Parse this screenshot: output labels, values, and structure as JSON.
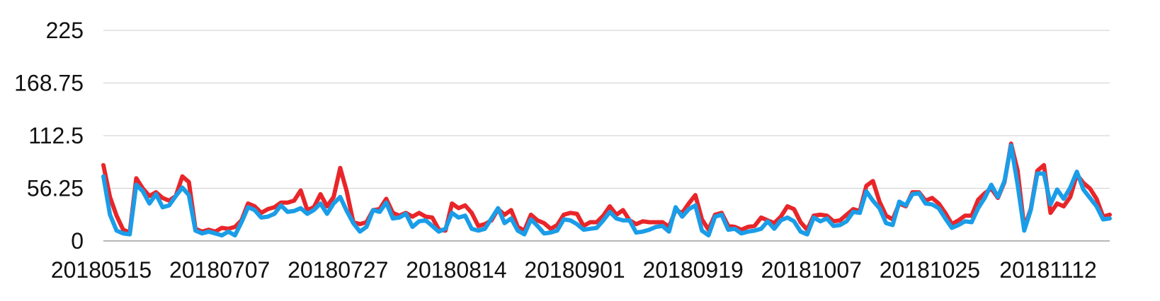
{
  "chart_data": {
    "type": "line",
    "ylim": [
      0,
      225
    ],
    "yticks": [
      "0",
      "56.25",
      "112.5",
      "168.75",
      "225"
    ],
    "xtick_labels": [
      "20180515",
      "20180707",
      "20180727",
      "20180814",
      "20180901",
      "20180919",
      "20181007",
      "20181025",
      "20181112"
    ],
    "grid": true,
    "series": [
      {
        "color": "#e8262a",
        "values": [
          81,
          47,
          27,
          12,
          9,
          67,
          56,
          48,
          52,
          46,
          43,
          48,
          69,
          63,
          13,
          10,
          12,
          10,
          14,
          13,
          15,
          22,
          40,
          37,
          30,
          34,
          36,
          41,
          41,
          43,
          54,
          33,
          36,
          50,
          37,
          47,
          78,
          53,
          20,
          18,
          20,
          33,
          34,
          45,
          30,
          27,
          30,
          26,
          30,
          26,
          25,
          12,
          11,
          40,
          35,
          38,
          30,
          16,
          18,
          22,
          34,
          28,
          33,
          15,
          11,
          28,
          22,
          19,
          13,
          17,
          28,
          30,
          29,
          16,
          20,
          20,
          27,
          37,
          28,
          33,
          22,
          18,
          21,
          20,
          20,
          20,
          15,
          33,
          30,
          40,
          49,
          23,
          12,
          28,
          30,
          16,
          15,
          12,
          15,
          16,
          25,
          22,
          19,
          26,
          37,
          34,
          20,
          12,
          27,
          28,
          27,
          21,
          22,
          28,
          34,
          32,
          59,
          64,
          42,
          27,
          23,
          40,
          37,
          52,
          52,
          43,
          46,
          40,
          30,
          18,
          22,
          27,
          27,
          44,
          51,
          56,
          46,
          63,
          104,
          75,
          14,
          34,
          75,
          81,
          30,
          40,
          37,
          47,
          71,
          62,
          56,
          45,
          26,
          28
        ]
      },
      {
        "color": "#1a9de8",
        "values": [
          69,
          28,
          11,
          8,
          7,
          60,
          53,
          40,
          50,
          36,
          38,
          48,
          57,
          49,
          11,
          8,
          10,
          8,
          6,
          10,
          6,
          20,
          36,
          33,
          25,
          26,
          29,
          38,
          31,
          32,
          35,
          29,
          33,
          40,
          29,
          40,
          47,
          32,
          19,
          10,
          15,
          33,
          31,
          41,
          24,
          25,
          29,
          15,
          21,
          22,
          16,
          10,
          13,
          30,
          25,
          27,
          13,
          11,
          13,
          24,
          35,
          19,
          24,
          11,
          7,
          23,
          16,
          8,
          9,
          11,
          23,
          22,
          18,
          12,
          13,
          14,
          22,
          31,
          24,
          22,
          22,
          9,
          10,
          12,
          15,
          16,
          10,
          36,
          26,
          34,
          38,
          11,
          6,
          26,
          28,
          12,
          13,
          8,
          10,
          11,
          13,
          21,
          13,
          22,
          25,
          21,
          10,
          7,
          25,
          21,
          24,
          16,
          17,
          21,
          31,
          30,
          53,
          43,
          35,
          19,
          17,
          42,
          38,
          50,
          51,
          40,
          39,
          35,
          24,
          14,
          17,
          21,
          20,
          35,
          46,
          60,
          47,
          64,
          102,
          60,
          11,
          33,
          72,
          72,
          39,
          55,
          45,
          57,
          74,
          55,
          46,
          37,
          23,
          24
        ]
      }
    ]
  }
}
